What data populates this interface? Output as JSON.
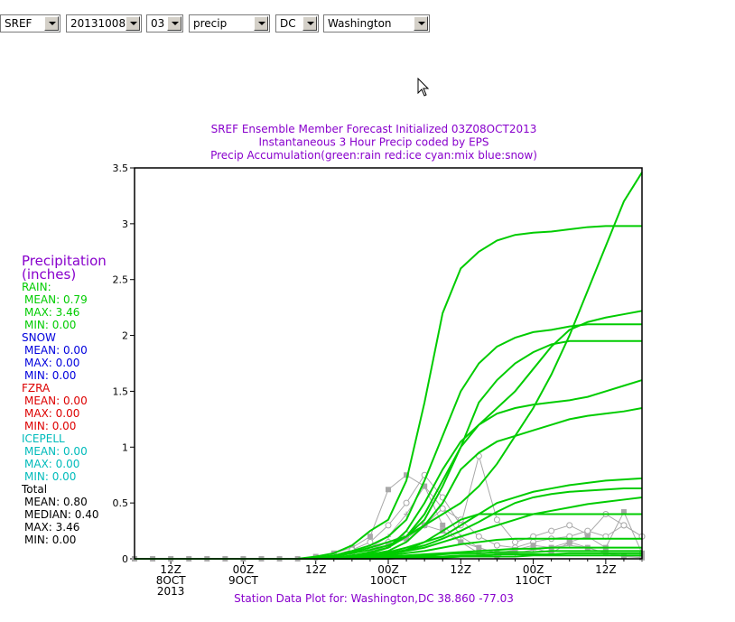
{
  "controls": {
    "model": "SREF",
    "date": "20131008",
    "cycle": "03",
    "field": "precip",
    "state": "DC",
    "station": "Washington"
  },
  "chart_data": {
    "type": "line",
    "title_lines": [
      "SREF Ensemble Member Forecast Initialized 03Z08OCT2013",
      "Instantaneous 3 Hour Precip coded by EPS",
      "Precip Accumulation(green:rain red:ice cyan:mix blue:snow)"
    ],
    "footer": "Station Data Plot for: Washington,DC 38.860 -77.03",
    "xlabel": "",
    "ylabel": "",
    "x_unit": "hours since 03Z 08OCT2013",
    "xlim": [
      0,
      84
    ],
    "ylim": [
      0,
      3.5
    ],
    "yticks": [
      0,
      0.5,
      1,
      1.5,
      2,
      2.5,
      3,
      3.5
    ],
    "ytick_labels": [
      "0",
      "0.5",
      "1",
      "1.5",
      "2",
      "2.5",
      "3",
      "3.5"
    ],
    "xticks": [
      {
        "x": 6,
        "lines": [
          "12Z",
          "8OCT",
          "2013"
        ]
      },
      {
        "x": 18,
        "lines": [
          "00Z",
          "9OCT"
        ]
      },
      {
        "x": 30,
        "lines": [
          "12Z"
        ]
      },
      {
        "x": 42,
        "lines": [
          "00Z",
          "10OCT"
        ]
      },
      {
        "x": 54,
        "lines": [
          "12Z"
        ]
      },
      {
        "x": 66,
        "lines": [
          "00Z",
          "11OCT"
        ]
      },
      {
        "x": 78,
        "lines": [
          "12Z"
        ]
      }
    ],
    "accumulation_series": [
      {
        "x": [
          0,
          27,
          30,
          33,
          36,
          39,
          42,
          45,
          48,
          51,
          54,
          57,
          60,
          63,
          66,
          69,
          72,
          75,
          78,
          81,
          84
        ],
        "y": [
          0,
          0,
          0.02,
          0.05,
          0.12,
          0.25,
          0.35,
          0.7,
          1.4,
          2.2,
          2.6,
          2.75,
          2.85,
          2.9,
          2.92,
          2.93,
          2.95,
          2.97,
          2.98,
          2.98,
          2.98
        ]
      },
      {
        "x": [
          0,
          27,
          30,
          33,
          36,
          39,
          42,
          45,
          48,
          51,
          54,
          57,
          60,
          63,
          66,
          69,
          72,
          75,
          78,
          81,
          84
        ],
        "y": [
          0,
          0,
          0.01,
          0.03,
          0.06,
          0.1,
          0.15,
          0.2,
          0.3,
          0.4,
          0.5,
          0.65,
          0.85,
          1.1,
          1.35,
          1.65,
          2.0,
          2.4,
          2.8,
          3.2,
          3.46
        ]
      },
      {
        "x": [
          0,
          27,
          30,
          33,
          36,
          39,
          42,
          45,
          48,
          51,
          54,
          57,
          60,
          63,
          66,
          69,
          72,
          75,
          78,
          81,
          84
        ],
        "y": [
          0,
          0,
          0.01,
          0.03,
          0.07,
          0.12,
          0.2,
          0.35,
          0.7,
          1.1,
          1.5,
          1.75,
          1.9,
          1.98,
          2.03,
          2.05,
          2.08,
          2.1,
          2.1,
          2.1,
          2.1
        ]
      },
      {
        "x": [
          0,
          27,
          30,
          33,
          36,
          39,
          42,
          45,
          48,
          51,
          54,
          57,
          60,
          63,
          66,
          69,
          72,
          75,
          78,
          81,
          84
        ],
        "y": [
          0,
          0,
          0.01,
          0.02,
          0.05,
          0.08,
          0.12,
          0.2,
          0.35,
          0.65,
          1.0,
          1.4,
          1.6,
          1.75,
          1.85,
          1.92,
          1.95,
          1.95,
          1.95,
          1.95,
          1.95
        ]
      },
      {
        "x": [
          0,
          27,
          30,
          33,
          36,
          39,
          42,
          45,
          48,
          51,
          54,
          57,
          60,
          63,
          66,
          69,
          72,
          75,
          78,
          81,
          84
        ],
        "y": [
          0,
          0,
          0,
          0.01,
          0.03,
          0.06,
          0.1,
          0.2,
          0.4,
          0.7,
          1.0,
          1.2,
          1.35,
          1.5,
          1.7,
          1.9,
          2.05,
          2.12,
          2.16,
          2.19,
          2.22
        ]
      },
      {
        "x": [
          0,
          27,
          30,
          33,
          36,
          39,
          42,
          45,
          48,
          51,
          54,
          57,
          60,
          63,
          66,
          69,
          72,
          75,
          78,
          81,
          84
        ],
        "y": [
          0,
          0,
          0,
          0.01,
          0.02,
          0.05,
          0.1,
          0.25,
          0.5,
          0.8,
          1.05,
          1.2,
          1.3,
          1.35,
          1.38,
          1.4,
          1.42,
          1.45,
          1.5,
          1.55,
          1.6
        ]
      },
      {
        "x": [
          0,
          27,
          30,
          33,
          36,
          39,
          42,
          45,
          48,
          51,
          54,
          57,
          60,
          63,
          66,
          69,
          72,
          75,
          78,
          81,
          84
        ],
        "y": [
          0,
          0,
          0,
          0.01,
          0.02,
          0.04,
          0.07,
          0.15,
          0.3,
          0.5,
          0.8,
          0.95,
          1.05,
          1.1,
          1.15,
          1.2,
          1.25,
          1.28,
          1.3,
          1.32,
          1.35
        ]
      },
      {
        "x": [
          0,
          27,
          30,
          33,
          36,
          39,
          42,
          45,
          48,
          51,
          54,
          57,
          60,
          63,
          66,
          69,
          72,
          75,
          78,
          81,
          84
        ],
        "y": [
          0,
          0,
          0,
          0,
          0.01,
          0.03,
          0.06,
          0.1,
          0.15,
          0.2,
          0.3,
          0.4,
          0.5,
          0.55,
          0.6,
          0.63,
          0.66,
          0.68,
          0.7,
          0.71,
          0.72
        ]
      },
      {
        "x": [
          0,
          27,
          30,
          33,
          36,
          39,
          42,
          45,
          48,
          51,
          54,
          57,
          60,
          63,
          66,
          69,
          72,
          75,
          78,
          81,
          84
        ],
        "y": [
          0,
          0,
          0,
          0,
          0.01,
          0.02,
          0.05,
          0.08,
          0.12,
          0.18,
          0.25,
          0.33,
          0.42,
          0.5,
          0.55,
          0.58,
          0.6,
          0.61,
          0.62,
          0.63,
          0.63
        ]
      },
      {
        "x": [
          0,
          27,
          30,
          33,
          36,
          39,
          42,
          45,
          48,
          51,
          54,
          57,
          60,
          63,
          66,
          69,
          72,
          75,
          78,
          81,
          84
        ],
        "y": [
          0,
          0,
          0,
          0,
          0.01,
          0.02,
          0.04,
          0.07,
          0.1,
          0.15,
          0.2,
          0.25,
          0.3,
          0.35,
          0.4,
          0.43,
          0.46,
          0.49,
          0.51,
          0.53,
          0.55
        ]
      },
      {
        "x": [
          0,
          27,
          30,
          33,
          36,
          39,
          42,
          45,
          48,
          51,
          54,
          57,
          60,
          63,
          66,
          69,
          72,
          75,
          78,
          81,
          84
        ],
        "y": [
          0,
          0,
          0,
          0,
          0.01,
          0.02,
          0.04,
          0.08,
          0.15,
          0.25,
          0.35,
          0.4,
          0.4,
          0.4,
          0.4,
          0.4,
          0.4,
          0.4,
          0.4,
          0.4,
          0.4
        ]
      },
      {
        "x": [
          0,
          27,
          30,
          33,
          36,
          39,
          42,
          45,
          48,
          51,
          54,
          57,
          60,
          63,
          66,
          69,
          72,
          75,
          78,
          81,
          84
        ],
        "y": [
          0,
          0,
          0,
          0,
          0.01,
          0.02,
          0.03,
          0.05,
          0.07,
          0.1,
          0.13,
          0.15,
          0.17,
          0.18,
          0.18,
          0.18,
          0.18,
          0.18,
          0.18,
          0.18,
          0.18
        ]
      },
      {
        "x": [
          0,
          27,
          30,
          33,
          36,
          39,
          42,
          45,
          48,
          51,
          54,
          57,
          60,
          63,
          66,
          69,
          72,
          75,
          78,
          81,
          84
        ],
        "y": [
          0,
          0,
          0,
          0,
          0.01,
          0.01,
          0.02,
          0.03,
          0.04,
          0.05,
          0.06,
          0.07,
          0.08,
          0.09,
          0.09,
          0.1,
          0.1,
          0.1,
          0.1,
          0.1,
          0.1
        ]
      },
      {
        "x": [
          0,
          27,
          30,
          33,
          36,
          39,
          42,
          45,
          48,
          51,
          54,
          57,
          60,
          63,
          66,
          69,
          72,
          75,
          78,
          81,
          84
        ],
        "y": [
          0,
          0,
          0,
          0,
          0,
          0.01,
          0.01,
          0.02,
          0.03,
          0.04,
          0.05,
          0.05,
          0.06,
          0.06,
          0.06,
          0.07,
          0.07,
          0.07,
          0.07,
          0.07,
          0.07
        ]
      },
      {
        "x": [
          0,
          27,
          30,
          33,
          36,
          39,
          42,
          45,
          48,
          51,
          54,
          57,
          60,
          63,
          66,
          69,
          72,
          75,
          78,
          81,
          84
        ],
        "y": [
          0,
          0,
          0,
          0,
          0,
          0,
          0.01,
          0.01,
          0.02,
          0.02,
          0.03,
          0.03,
          0.04,
          0.04,
          0.04,
          0.04,
          0.05,
          0.05,
          0.05,
          0.05,
          0.05
        ]
      },
      {
        "x": [
          0,
          27,
          30,
          33,
          36,
          39,
          42,
          45,
          48,
          51,
          54,
          57,
          60,
          63,
          66,
          69,
          72,
          75,
          78,
          81,
          84
        ],
        "y": [
          0,
          0,
          0,
          0,
          0,
          0,
          0,
          0.01,
          0.01,
          0.01,
          0.02,
          0.02,
          0.02,
          0.02,
          0.03,
          0.03,
          0.03,
          0.03,
          0.03,
          0.03,
          0.03
        ]
      }
    ],
    "hourly_series": [
      {
        "marker": "square",
        "x": [
          0,
          3,
          6,
          9,
          12,
          15,
          18,
          21,
          24,
          27,
          30,
          33,
          36,
          39,
          42,
          45,
          48,
          51,
          54,
          57,
          60,
          63,
          66,
          69,
          72,
          75,
          78,
          81,
          84
        ],
        "y": [
          0,
          0,
          0,
          0,
          0,
          0,
          0,
          0,
          0,
          0,
          0.02,
          0.05,
          0.1,
          0.2,
          0.62,
          0.75,
          0.65,
          0.3,
          0.15,
          0.05,
          0.02,
          0.08,
          0.1,
          0.05,
          0.15,
          0.1,
          0.05,
          0.02,
          0.01
        ]
      },
      {
        "marker": "circle",
        "x": [
          30,
          33,
          36,
          39,
          42,
          45,
          48,
          51,
          54,
          57,
          60,
          63,
          66,
          69,
          72,
          75,
          78,
          81,
          84
        ],
        "y": [
          0.01,
          0.03,
          0.08,
          0.15,
          0.3,
          0.5,
          0.75,
          0.55,
          0.3,
          0.92,
          0.35,
          0.15,
          0.2,
          0.25,
          0.3,
          0.22,
          0.4,
          0.3,
          0.2
        ]
      },
      {
        "marker": "plus",
        "x": [
          30,
          33,
          36,
          39,
          42,
          45,
          48,
          51,
          54,
          57,
          60,
          63,
          66,
          69,
          72,
          75,
          78,
          81,
          84
        ],
        "y": [
          0.01,
          0.02,
          0.05,
          0.1,
          0.2,
          0.4,
          0.65,
          0.45,
          0.2,
          0.1,
          0.05,
          0.05,
          0.08,
          0.1,
          0.12,
          0.1,
          0.05,
          0.03,
          0.02
        ]
      },
      {
        "marker": "circle",
        "x": [
          33,
          36,
          39,
          42,
          45,
          48,
          51,
          54,
          57,
          60,
          63,
          66,
          69,
          72,
          75,
          78,
          81,
          84
        ],
        "y": [
          0.02,
          0.05,
          0.08,
          0.15,
          0.22,
          0.3,
          0.45,
          0.35,
          0.2,
          0.12,
          0.1,
          0.15,
          0.18,
          0.2,
          0.25,
          0.2,
          0.3,
          0.2
        ]
      },
      {
        "marker": "square",
        "x": [
          36,
          39,
          42,
          45,
          48,
          51,
          54,
          57,
          60,
          63,
          66,
          69,
          72,
          75,
          78,
          81,
          84
        ],
        "y": [
          0.03,
          0.06,
          0.12,
          0.18,
          0.3,
          0.25,
          0.15,
          0.1,
          0.05,
          0.08,
          0.12,
          0.1,
          0.15,
          0.2,
          0.1,
          0.42,
          0.05
        ]
      }
    ],
    "stats": {
      "heading": [
        "Precipitation",
        "(inches)"
      ],
      "groups": [
        {
          "title": "RAIN:",
          "color": "#00cc00",
          "rows": [
            "MEAN:  0.79",
            "MAX:   3.46",
            "MIN:  0.00"
          ]
        },
        {
          "title": "SNOW",
          "color": "#0000dd",
          "rows": [
            "MEAN: 0.00",
            "MAX:   0.00",
            "MIN:  0.00"
          ]
        },
        {
          "title": "FZRA",
          "color": "#dd0000",
          "rows": [
            "MEAN: 0.00",
            "MAX:  0.00",
            "MIN: 0.00"
          ]
        },
        {
          "title": "ICEPELL",
          "color": "#00bbbb",
          "rows": [
            "MEAN: 0.00",
            "MAX:  0.00",
            "MIN:  0.00"
          ]
        },
        {
          "title": "Total",
          "color": "#000000",
          "rows": [
            "MEAN: 0.80",
            "MEDIAN: 0.40",
            "MAX: 3.46",
            "MIN: 0.00"
          ]
        }
      ]
    },
    "colors": {
      "rain": "#00cc00",
      "hourly": "#a8a8a8",
      "title": "#8800cc",
      "axis": "#000000"
    }
  }
}
